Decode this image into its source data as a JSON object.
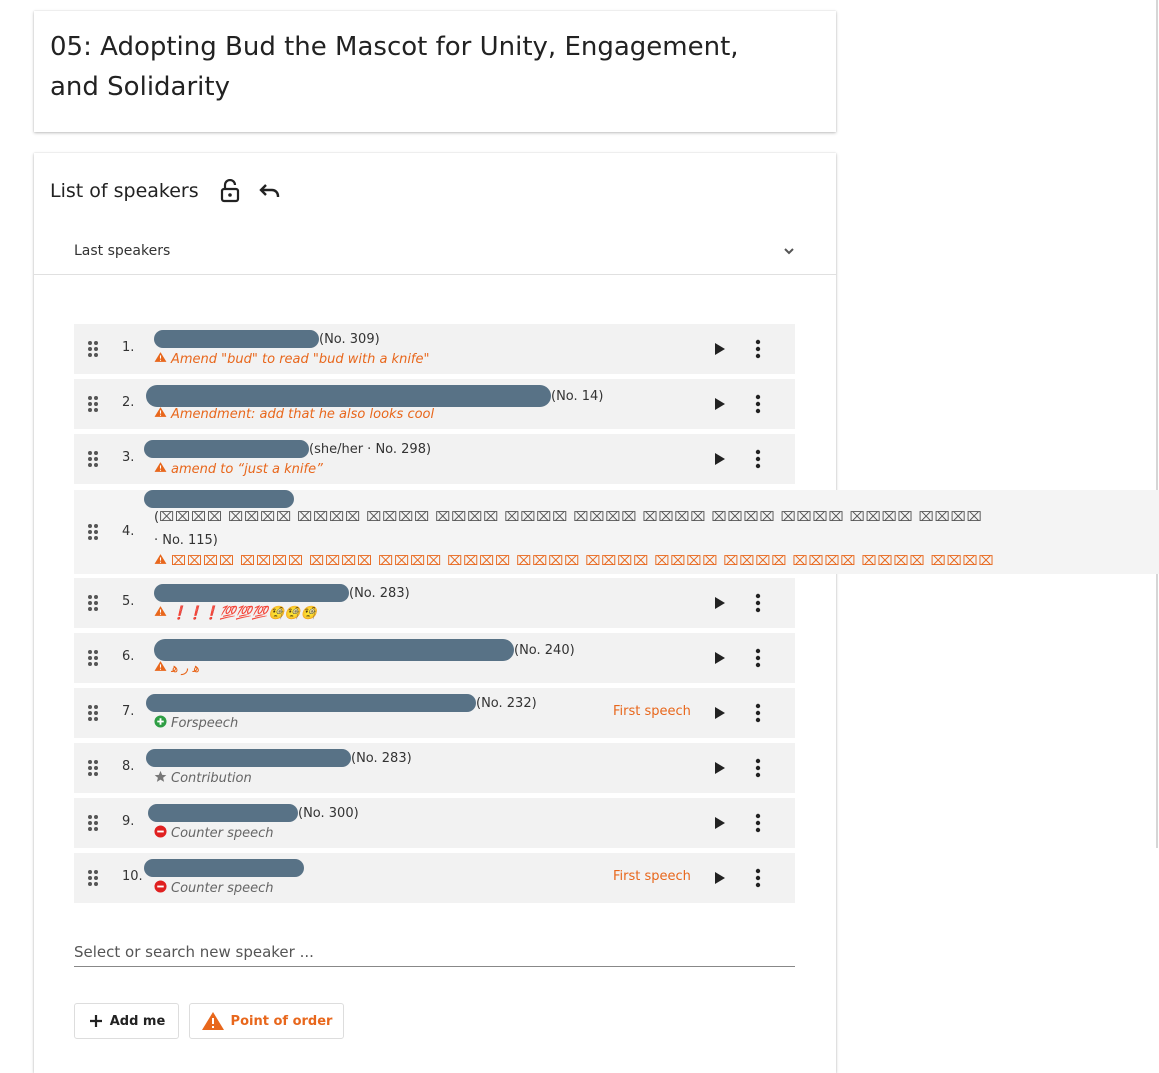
{
  "motion": {
    "title": "05: Adopting Bud the Mascot for Unity, Engagement, and Solidarity"
  },
  "list_of_speakers": {
    "title": "List of speakers",
    "lock_icon": "lock-open-icon",
    "undo_icon": "undo-icon",
    "last_speakers_label": "Last speakers",
    "first_speech_label": "First speech",
    "speakers": [
      {
        "number": "1.",
        "info": "(No. 309)",
        "note": "Amend \"bud\" to read \"bud with a knife\"",
        "note_type": "warning"
      },
      {
        "number": "2.",
        "info": "(No. 14)",
        "note": "Amendment: add that he also looks cool",
        "note_type": "warning"
      },
      {
        "number": "3.",
        "info": "(she/her · No. 298)",
        "note": "amend to “just a knife”",
        "note_type": "warning"
      },
      {
        "number": "4.",
        "info_a": "(",
        "info_b": "· No. 115)",
        "note": "",
        "note_type": "warning"
      },
      {
        "number": "5.",
        "info": "(No. 283)",
        "note": "❗❗❗💯💯💯🧐🧐🧐",
        "note_type": "warning"
      },
      {
        "number": "6.",
        "info": "(No. 240)",
        "note": "ﻫ ﺭ ﻫ",
        "note_type": "warning"
      },
      {
        "number": "7.",
        "info": "(No. 232)",
        "note": "Forspeech",
        "note_type": "pro",
        "first_speech": true
      },
      {
        "number": "8.",
        "info": "(No. 283)",
        "note": "Contribution",
        "note_type": "contribution"
      },
      {
        "number": "9.",
        "info": "(No. 300)",
        "note": "Counter speech",
        "note_type": "contra"
      },
      {
        "number": "10.",
        "info": "",
        "note": "Counter speech",
        "note_type": "contra",
        "first_speech": true
      }
    ],
    "search_placeholder": "Select or search new speaker ...",
    "add_me_label": "Add me",
    "point_of_order_label": "Point of order"
  },
  "colors": {
    "accent_orange": "#e8671c",
    "pro_green": "#2e9e44",
    "contra_red": "#e02020"
  }
}
